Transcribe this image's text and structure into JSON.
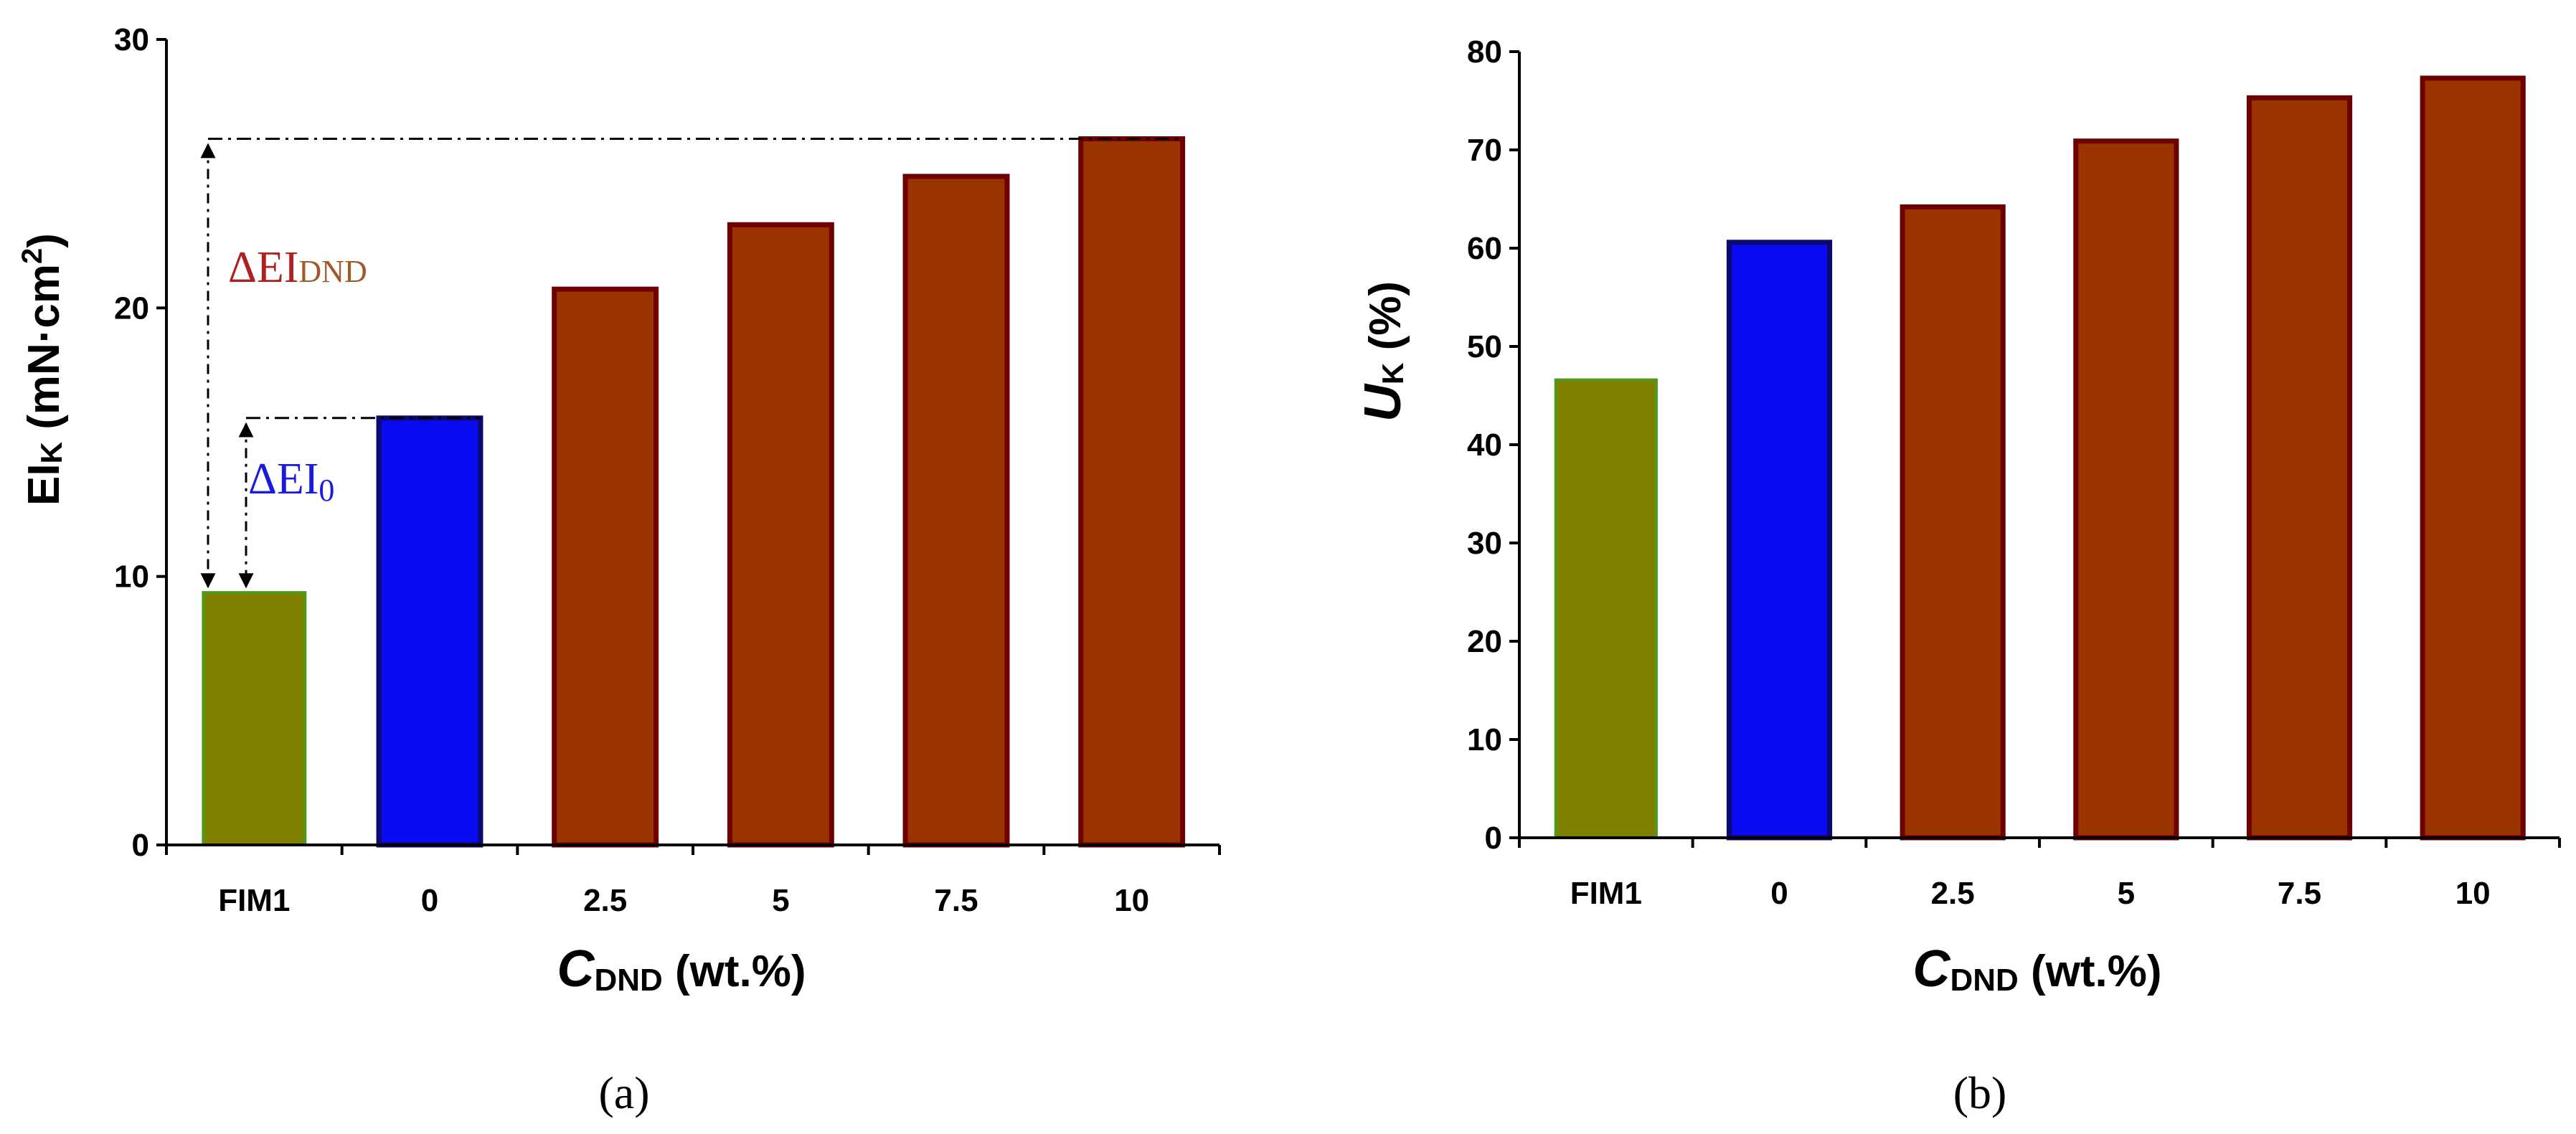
{
  "colors": {
    "fim1_fill": "#808000",
    "fim1_edge": "#4c9a1a",
    "zero_fill": "#0a0af0",
    "zero_edge": "#0a0a70",
    "dnd_fill": "#993300",
    "dnd_edge": "#6e0000",
    "delta_total_color": "#b02020",
    "delta_total_sub_color": "#a05a2a",
    "delta_zero_color": "#1a1ae0"
  },
  "chart_data": [
    {
      "type": "bar",
      "panel": "a",
      "caption": "(a)",
      "categories": [
        "FIM1",
        "0",
        "2.5",
        "5",
        "7.5",
        "10"
      ],
      "values": [
        9.4,
        15.9,
        20.7,
        23.1,
        24.9,
        26.3
      ],
      "ylim": [
        0,
        30
      ],
      "yticks": [
        "0",
        "10",
        "20",
        "30"
      ],
      "ylabel": {
        "main": "EI",
        "sub": "K",
        "units": " (mN·cm",
        "sup": "2",
        "close": ")"
      },
      "xlabel": {
        "main": "C",
        "sub": "DND",
        "units": " (wt.%)"
      },
      "annotations": {
        "delta_total": {
          "symbol": "ΔEI",
          "sub": "DND"
        },
        "delta_zero": {
          "symbol": "ΔEI",
          "sub": "0"
        }
      }
    },
    {
      "type": "bar",
      "panel": "b",
      "caption": "(b)",
      "categories": [
        "FIM1",
        "0",
        "2.5",
        "5",
        "7.5",
        "10"
      ],
      "values": [
        46.6,
        60.6,
        64.2,
        70.9,
        75.3,
        77.3
      ],
      "ylim": [
        0,
        80
      ],
      "yticks": [
        "0",
        "10",
        "20",
        "30",
        "40",
        "50",
        "60",
        "70",
        "80"
      ],
      "ylabel": {
        "main": "U",
        "sub": "K",
        "units": " (%)"
      },
      "xlabel": {
        "main": "C",
        "sub": "DND",
        "units": " (wt.%)"
      }
    }
  ]
}
